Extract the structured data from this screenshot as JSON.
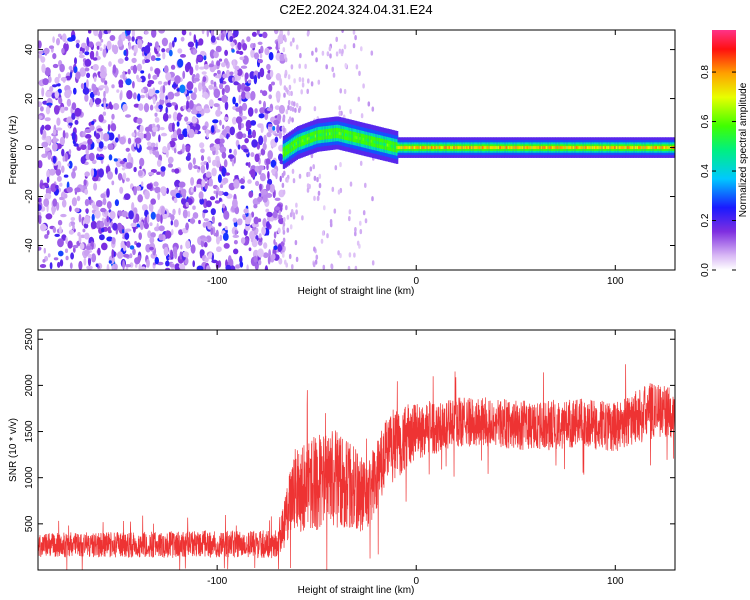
{
  "title": "C2E2.2024.324.04.31.E24",
  "chart_data": [
    {
      "type": "heatmap",
      "xlabel": "Height of straight line (km)",
      "ylabel": "Frequency (Hz)",
      "xlim": [
        -190,
        130
      ],
      "ylim": [
        -50,
        48
      ],
      "x_ticks": [
        -100,
        0,
        100
      ],
      "x_tick_labels": [
        "-100",
        "0",
        "100"
      ],
      "y_ticks": [
        -40,
        -20,
        0,
        20,
        40
      ],
      "y_tick_labels": [
        "-40",
        "-20",
        "0",
        "20",
        "40"
      ],
      "colorbar": {
        "label": "Normalized spectral amplitude",
        "range": [
          0,
          0.97
        ],
        "ticks": [
          0,
          0.2,
          0.4,
          0.6,
          0.8
        ],
        "tick_labels": [
          "0.0",
          "0.2",
          "0.4",
          "0.6",
          "0.8"
        ],
        "colormap": "rainbow (white-violet-blue-cyan-green-yellow-red-magenta)"
      },
      "features": {
        "noise_region_x": [
          -190,
          -67
        ],
        "noise_amplitude": [
          0.05,
          0.25
        ],
        "sparse_noise_region_x": [
          -67,
          -20
        ],
        "signal_start_x": -67,
        "signal_line": {
          "x": [
            -67,
            -60,
            -50,
            -40,
            -30,
            -20,
            -10,
            0,
            20,
            50,
            100,
            130
          ],
          "freq": [
            -2,
            2,
            5,
            6,
            4,
            2,
            0,
            0,
            0,
            0,
            0,
            0
          ],
          "peak_amplitude": 0.85
        }
      }
    },
    {
      "type": "line",
      "xlabel": "Height of straight line (km)",
      "ylabel": "SNR (10 * v/v)",
      "xlim": [
        -190,
        130
      ],
      "ylim": [
        0,
        2600
      ],
      "x_ticks": [
        -100,
        0,
        100
      ],
      "x_tick_labels": [
        "-100",
        "0",
        "100"
      ],
      "y_ticks": [
        500,
        1000,
        1500,
        2000,
        2500
      ],
      "y_tick_labels": [
        "500",
        "1000",
        "1500",
        "2000",
        "2500"
      ],
      "color": "#ee3333",
      "series": [
        {
          "envelope_x": [
            -190,
            -70,
            -60,
            -40,
            -25,
            -12,
            0,
            20,
            40,
            60,
            80,
            100,
            120,
            130
          ],
          "envelope_mean": [
            270,
            280,
            900,
            1000,
            800,
            1350,
            1500,
            1600,
            1600,
            1550,
            1600,
            1550,
            1750,
            1700
          ],
          "envelope_halfwidth": [
            150,
            170,
            550,
            600,
            450,
            450,
            350,
            300,
            300,
            300,
            300,
            300,
            350,
            300
          ]
        }
      ]
    }
  ]
}
